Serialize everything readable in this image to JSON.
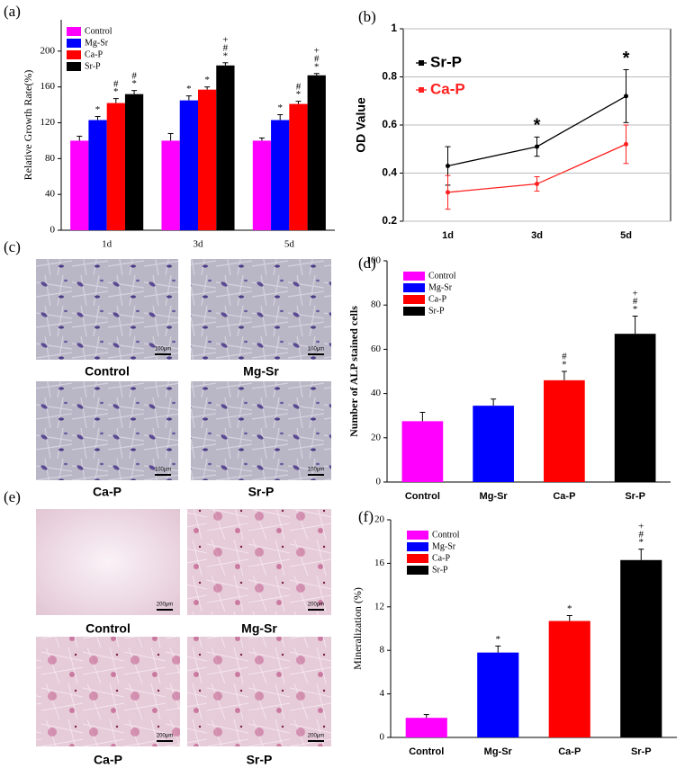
{
  "chart_data": [
    {
      "type": "bar",
      "label": "(a)",
      "ylabel": "Relative Growth Rate(%)",
      "categories": [
        "1d",
        "3d",
        "5d"
      ],
      "series": [
        {
          "name": "Control",
          "color": "#ff00ff",
          "values": [
            100,
            100,
            100
          ],
          "errors": [
            5,
            8,
            3
          ]
        },
        {
          "name": "Mg-Sr",
          "color": "#0000ff",
          "values": [
            123,
            145,
            123
          ],
          "errors": [
            4,
            5,
            6
          ],
          "annotations": [
            [
              "*"
            ],
            [
              "*"
            ],
            [
              "*"
            ]
          ]
        },
        {
          "name": "Ca-P",
          "color": "#ff0000",
          "values": [
            142,
            157,
            141
          ],
          "errors": [
            5,
            3,
            3
          ],
          "annotations": [
            [
              "*",
              "#"
            ],
            [
              "*"
            ],
            [
              "*",
              "#"
            ]
          ]
        },
        {
          "name": "Sr-P",
          "color": "#000000",
          "values": [
            152,
            184,
            173
          ],
          "errors": [
            4,
            3,
            2
          ],
          "annotations": [
            [
              "*",
              "#"
            ],
            [
              "*",
              "#",
              "+"
            ],
            [
              "*",
              "#",
              "+"
            ]
          ]
        }
      ],
      "ylim": [
        0,
        235
      ],
      "yticks": [
        0,
        40,
        80,
        120,
        160,
        200
      ],
      "grid": false
    },
    {
      "type": "line",
      "label": "(b)",
      "ylabel": "OD  Value",
      "categories": [
        "1d",
        "3d",
        "5d"
      ],
      "series": [
        {
          "name": "Sr-P",
          "color": "#000000",
          "values": [
            0.43,
            0.51,
            0.72
          ],
          "errors": [
            0.08,
            0.04,
            0.11
          ]
        },
        {
          "name": "Ca-P",
          "color": "#ff2020",
          "values": [
            0.32,
            0.355,
            0.52
          ],
          "errors": [
            0.07,
            0.03,
            0.08
          ]
        }
      ],
      "annotations": [
        null,
        "*",
        "*"
      ],
      "ylim": [
        0.2,
        1
      ],
      "yticks": [
        0.2,
        0.4,
        0.6,
        0.8,
        1
      ],
      "grid": true
    },
    {
      "type": "bar",
      "label": "(d)",
      "ylabel": "Number of ALP stained cells",
      "categories": [
        "Control",
        "Mg-Sr",
        "Ca-P",
        "Sr-P"
      ],
      "colors": [
        "#ff00ff",
        "#0000ff",
        "#ff0000",
        "#000000"
      ],
      "values": [
        27.5,
        34.5,
        46,
        67
      ],
      "errors": [
        4,
        3,
        4,
        8
      ],
      "annotations": [
        null,
        null,
        [
          "*",
          "#"
        ],
        [
          "*",
          "#",
          "+"
        ]
      ],
      "ylim": [
        0,
        100
      ],
      "yticks": [
        0,
        20,
        40,
        60,
        80,
        100
      ],
      "grid": false
    },
    {
      "type": "bar",
      "label": "(f)",
      "ylabel": "Mineralization (%)",
      "categories": [
        "Control",
        "Mg-Sr",
        "Ca-P",
        "Sr-P"
      ],
      "colors": [
        "#ff00ff",
        "#0000ff",
        "#ff0000",
        "#000000"
      ],
      "values": [
        1.8,
        7.8,
        10.7,
        16.3
      ],
      "errors": [
        0.3,
        0.6,
        0.5,
        1.0
      ],
      "annotations": [
        null,
        [
          "*"
        ],
        [
          "*"
        ],
        [
          "*",
          "#",
          "+"
        ]
      ],
      "ylim": [
        0,
        20
      ],
      "yticks": [
        0,
        4,
        8,
        12,
        16,
        20
      ],
      "grid": false
    }
  ],
  "micrographs": [
    {
      "label": "(c)",
      "images": [
        {
          "caption": "Control",
          "scale": "100μm"
        },
        {
          "caption": "Mg-Sr",
          "scale": "100μm"
        },
        {
          "caption": "Ca-P",
          "scale": "100μm"
        },
        {
          "caption": "Sr-P",
          "scale": "100μm"
        }
      ]
    },
    {
      "label": "(e)",
      "images": [
        {
          "caption": "Control",
          "scale": "200μm"
        },
        {
          "caption": "Mg-Sr",
          "scale": "200μm"
        },
        {
          "caption": "Ca-P",
          "scale": "200μm"
        },
        {
          "caption": "Sr-P",
          "scale": "200μm"
        }
      ]
    }
  ]
}
